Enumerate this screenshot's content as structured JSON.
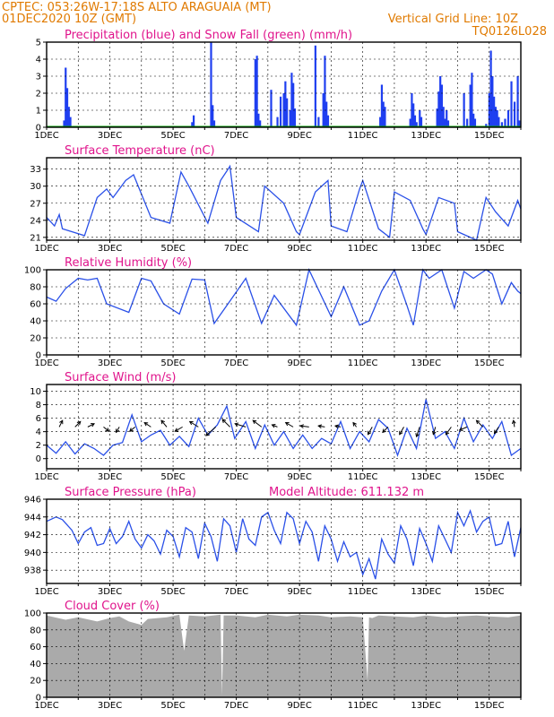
{
  "header": {
    "line1": "CPTEC:   053:26W-17:18S   ALTO ARAGUAIA (MT)",
    "line2": "01DEC2020 10Z (GMT)",
    "grid_note": "Vertical Grid Line: 10Z",
    "code": "TQ0126L028"
  },
  "colors": {
    "header": "#e07a00",
    "title": "#e0148c",
    "precip": "#1f3ff0",
    "snow": "#00a000",
    "line": "#2a50e8",
    "arrow": "#000000",
    "cloud": "#aaaaaa"
  },
  "chart_data": [
    {
      "type": "bar",
      "title": "Precipitation (blue) and Snow Fall (green) (mm/h)",
      "x_tick_labels": [
        "1DEC",
        "3DEC",
        "5DEC",
        "7DEC",
        "9DEC",
        "11DEC",
        "13DEC",
        "15DEC"
      ],
      "x_range_days": [
        1,
        16
      ],
      "ylim": [
        0,
        5
      ],
      "yticks": [
        0,
        1,
        2,
        3,
        4,
        5
      ],
      "grid": true,
      "series": [
        {
          "name": "Precipitation",
          "x": [
            1.55,
            1.6,
            1.65,
            1.7,
            1.75,
            5.6,
            5.65,
            6.2,
            6.25,
            6.3,
            7.6,
            7.65,
            7.7,
            7.75,
            8.1,
            8.3,
            8.4,
            8.5,
            8.55,
            8.6,
            8.7,
            8.75,
            8.8,
            8.85,
            9.5,
            9.6,
            9.75,
            9.8,
            9.85,
            9.9,
            11.55,
            11.6,
            11.65,
            11.7,
            12.5,
            12.55,
            12.6,
            12.65,
            12.7,
            12.8,
            12.85,
            13.35,
            13.4,
            13.45,
            13.5,
            13.55,
            13.6,
            13.65,
            13.7,
            14.2,
            14.3,
            14.4,
            14.45,
            14.5,
            14.55,
            14.9,
            15.0,
            15.05,
            15.1,
            15.15,
            15.2,
            15.25,
            15.3,
            15.4,
            15.5,
            15.6,
            15.7,
            15.8,
            15.9,
            15.95
          ],
          "values": [
            0.4,
            3.5,
            2.3,
            1.2,
            0.6,
            0.3,
            0.7,
            5.0,
            1.3,
            0.4,
            4.0,
            4.2,
            0.8,
            0.4,
            2.2,
            0.6,
            1.8,
            2.0,
            2.7,
            1.7,
            1.0,
            3.2,
            2.6,
            1.1,
            4.8,
            0.6,
            2.0,
            4.2,
            1.5,
            0.7,
            0.6,
            2.5,
            1.5,
            1.2,
            0.5,
            2.0,
            1.4,
            0.7,
            0.3,
            1.0,
            0.6,
            1.1,
            2.1,
            3.0,
            2.5,
            1.2,
            0.5,
            1.0,
            0.4,
            2.0,
            0.5,
            2.5,
            3.2,
            0.8,
            0.5,
            0.2,
            2.0,
            4.5,
            3.0,
            1.8,
            1.2,
            1.0,
            0.6,
            0.3,
            0.5,
            1.0,
            2.7,
            1.5,
            3.0,
            0.4
          ]
        },
        {
          "name": "Snow Fall",
          "x": [
            1.0,
            16.0
          ],
          "values": [
            0,
            0
          ]
        }
      ]
    },
    {
      "type": "line",
      "title": "Surface Temperature (nC)",
      "x_tick_labels": [
        "1DEC",
        "3DEC",
        "5DEC",
        "7DEC",
        "9DEC",
        "11DEC",
        "13DEC",
        "15DEC"
      ],
      "x_range_days": [
        1,
        16
      ],
      "ylim": [
        20.5,
        35
      ],
      "yticks": [
        21,
        24,
        27,
        30,
        33
      ],
      "grid": true,
      "series": [
        {
          "name": "Surface Temperature",
          "x": [
            1.0,
            1.25,
            1.4,
            1.5,
            2.2,
            2.6,
            2.9,
            3.1,
            3.5,
            3.75,
            4.3,
            4.9,
            5.25,
            5.5,
            6.1,
            6.5,
            6.8,
            7.0,
            7.7,
            7.9,
            8.5,
            8.9,
            9.0,
            9.5,
            9.9,
            10.0,
            10.5,
            10.9,
            11.0,
            11.5,
            11.85,
            12.0,
            12.5,
            12.9,
            13.0,
            13.4,
            13.9,
            14.0,
            14.6,
            14.9,
            15.2,
            15.6,
            15.9,
            16.0
          ],
          "values": [
            24.5,
            23.0,
            25.0,
            22.5,
            21.3,
            28.0,
            29.5,
            28.0,
            31.0,
            32.0,
            24.5,
            23.5,
            32.5,
            30.0,
            23.5,
            31.0,
            33.5,
            24.5,
            22.0,
            30.0,
            27.0,
            22.0,
            21.5,
            29.0,
            31.0,
            23.0,
            22.0,
            29.5,
            31.0,
            22.5,
            21.0,
            29.0,
            27.5,
            22.5,
            21.5,
            28.0,
            27.0,
            22.0,
            20.5,
            28.0,
            25.5,
            23.0,
            27.5,
            26.0
          ]
        }
      ]
    },
    {
      "type": "line",
      "title": "Relative Humidity (%)",
      "x_tick_labels": [
        "1DEC",
        "3DEC",
        "5DEC",
        "7DEC",
        "9DEC",
        "11DEC",
        "13DEC",
        "15DEC"
      ],
      "x_range_days": [
        1,
        16
      ],
      "ylim": [
        0,
        100
      ],
      "yticks": [
        0,
        20,
        40,
        60,
        80,
        100
      ],
      "grid": true,
      "series": [
        {
          "name": "Relative Humidity",
          "x": [
            1.0,
            1.3,
            1.6,
            2.0,
            2.3,
            2.6,
            2.9,
            3.6,
            4.0,
            4.3,
            4.7,
            5.2,
            5.6,
            6.0,
            6.3,
            6.7,
            7.3,
            7.8,
            8.2,
            8.9,
            9.3,
            10.0,
            10.4,
            10.9,
            11.2,
            11.6,
            12.0,
            12.4,
            12.6,
            12.9,
            13.1,
            13.5,
            13.9,
            14.2,
            14.5,
            14.9,
            15.1,
            15.4,
            15.7,
            15.9,
            16.0
          ],
          "values": [
            68,
            63,
            78,
            90,
            88,
            90,
            60,
            50,
            90,
            87,
            60,
            48,
            89,
            88,
            37,
            58,
            90,
            37,
            70,
            35,
            100,
            45,
            80,
            35,
            40,
            75,
            100,
            58,
            35,
            100,
            90,
            100,
            55,
            98,
            90,
            100,
            95,
            60,
            85,
            75,
            72
          ]
        }
      ]
    },
    {
      "type": "line",
      "title": "Surface Wind (m/s)",
      "x_tick_labels": [
        "1DEC",
        "3DEC",
        "5DEC",
        "7DEC",
        "9DEC",
        "11DEC",
        "13DEC",
        "15DEC"
      ],
      "x_range_days": [
        1,
        16
      ],
      "ylim": [
        -1.5,
        11
      ],
      "yticks": [
        0,
        2,
        4,
        6,
        8,
        10
      ],
      "grid": true,
      "series": [
        {
          "name": "Wind Speed",
          "x": [
            1.0,
            1.3,
            1.6,
            1.9,
            2.2,
            2.5,
            2.8,
            3.1,
            3.4,
            3.7,
            4.0,
            4.3,
            4.6,
            4.9,
            5.2,
            5.5,
            5.8,
            6.1,
            6.4,
            6.7,
            6.95,
            7.3,
            7.6,
            7.9,
            8.2,
            8.5,
            8.8,
            9.1,
            9.4,
            9.7,
            10.0,
            10.3,
            10.6,
            10.9,
            11.2,
            11.5,
            11.8,
            12.1,
            12.4,
            12.7,
            13.0,
            13.3,
            13.6,
            13.9,
            14.2,
            14.5,
            14.8,
            15.1,
            15.4,
            15.7,
            16.0
          ],
          "values": [
            2.0,
            0.8,
            2.5,
            0.7,
            2.2,
            1.5,
            0.5,
            2.0,
            2.4,
            6.5,
            2.5,
            3.5,
            4.2,
            2.0,
            3.3,
            1.8,
            6.0,
            3.5,
            5.0,
            7.8,
            3.0,
            5.5,
            1.5,
            5.0,
            2.0,
            4.0,
            1.5,
            3.5,
            1.5,
            3.0,
            2.2,
            5.5,
            1.5,
            4.0,
            2.5,
            5.8,
            4.5,
            0.5,
            4.5,
            1.5,
            8.8,
            3.0,
            4.0,
            1.5,
            6.0,
            2.5,
            5.0,
            3.0,
            5.5,
            0.5,
            1.5
          ]
        },
        {
          "name": "Wind Direction",
          "arrow_x": [
            1.4,
            1.9,
            2.3,
            2.8,
            3.3,
            3.8,
            4.3,
            4.8,
            5.3,
            5.8,
            6.35,
            6.8,
            7.3,
            7.8,
            8.3,
            8.8,
            9.3,
            9.8,
            10.3,
            10.8,
            11.3,
            11.8,
            12.3,
            12.8,
            13.3,
            13.8,
            14.3,
            14.8,
            15.3,
            15.8
          ],
          "arrow_u": [
            0.3,
            0.5,
            0.6,
            0.5,
            -0.3,
            -0.5,
            -0.6,
            -0.5,
            -0.7,
            -0.8,
            -0.9,
            -0.7,
            -1.0,
            -0.8,
            -0.5,
            -0.7,
            -0.8,
            -0.6,
            -0.5,
            -0.3,
            -0.4,
            -0.5,
            -0.4,
            -0.3,
            -0.2,
            -0.5,
            -0.7,
            -0.6,
            -0.4,
            -0.1
          ],
          "arrow_v": [
            0.6,
            0.5,
            0.3,
            -0.4,
            -0.5,
            -0.4,
            0.4,
            0.6,
            -0.4,
            0.5,
            -0.8,
            0.7,
            0.3,
            0.6,
            0.2,
            0.4,
            0.1,
            0.1,
            0.1,
            0.4,
            -0.7,
            -0.5,
            -0.7,
            -0.9,
            -0.7,
            -0.7,
            -0.3,
            0.6,
            -0.6,
            0.6
          ]
        }
      ]
    },
    {
      "type": "line",
      "title": "Surface Pressure (hPa)",
      "annotation": "Model Altitude: 611.132 m",
      "x_tick_labels": [
        "1DEC",
        "3DEC",
        "5DEC",
        "7DEC",
        "9DEC",
        "11DEC",
        "13DEC",
        "15DEC"
      ],
      "x_range_days": [
        1,
        16
      ],
      "ylim": [
        936.5,
        946
      ],
      "yticks": [
        938,
        940,
        942,
        944,
        946
      ],
      "grid": true,
      "series": [
        {
          "name": "Surface Pressure",
          "x": [
            1.0,
            1.3,
            1.5,
            1.8,
            2.0,
            2.2,
            2.4,
            2.6,
            2.8,
            3.0,
            3.2,
            3.4,
            3.6,
            3.8,
            4.0,
            4.2,
            4.4,
            4.6,
            4.8,
            5.0,
            5.2,
            5.4,
            5.6,
            5.8,
            6.0,
            6.2,
            6.4,
            6.6,
            6.8,
            7.0,
            7.2,
            7.4,
            7.6,
            7.8,
            8.0,
            8.2,
            8.4,
            8.6,
            8.8,
            9.0,
            9.2,
            9.4,
            9.6,
            9.8,
            10.0,
            10.2,
            10.4,
            10.6,
            10.8,
            11.0,
            11.2,
            11.4,
            11.6,
            11.8,
            12.0,
            12.2,
            12.4,
            12.6,
            12.8,
            13.0,
            13.2,
            13.4,
            13.6,
            13.8,
            14.0,
            14.2,
            14.4,
            14.6,
            14.8,
            15.0,
            15.2,
            15.4,
            15.6,
            15.8,
            16.0
          ],
          "values": [
            943.5,
            944.0,
            943.7,
            942.5,
            941.0,
            942.3,
            942.8,
            940.8,
            941.0,
            942.7,
            941.0,
            941.8,
            943.5,
            941.5,
            940.5,
            942.0,
            941.3,
            939.8,
            942.5,
            941.8,
            939.5,
            942.8,
            942.3,
            939.3,
            943.3,
            941.8,
            939.0,
            943.8,
            943.0,
            940.0,
            943.8,
            941.5,
            940.8,
            944.0,
            944.5,
            942.5,
            941.0,
            944.5,
            943.8,
            941.0,
            943.5,
            942.3,
            939.0,
            943.0,
            941.5,
            939.0,
            941.2,
            939.5,
            940.0,
            937.5,
            939.3,
            937.0,
            941.5,
            939.8,
            938.8,
            943.0,
            941.5,
            938.5,
            942.7,
            941.0,
            939.0,
            943.0,
            941.5,
            940.0,
            944.5,
            943.0,
            944.7,
            942.3,
            943.5,
            944.0,
            940.8,
            941.0,
            943.5,
            939.5,
            942.8
          ]
        }
      ]
    },
    {
      "type": "area",
      "title": "Cloud Cover (%)",
      "x_tick_labels": [
        "1DEC",
        "3DEC",
        "5DEC",
        "7DEC",
        "9DEC",
        "11DEC",
        "13DEC",
        "15DEC"
      ],
      "x_range_days": [
        1,
        16
      ],
      "ylim": [
        0,
        100
      ],
      "yticks": [
        0,
        20,
        40,
        60,
        80,
        100
      ],
      "grid": true,
      "series": [
        {
          "name": "Cloud Cover",
          "x": [
            1.0,
            1.6,
            2.0,
            2.6,
            3.0,
            3.3,
            3.6,
            4.0,
            4.2,
            4.8,
            5.2,
            5.35,
            5.5,
            6.0,
            6.5,
            6.55,
            6.6,
            7.0,
            7.6,
            8.0,
            8.6,
            9.0,
            9.6,
            10.0,
            10.6,
            11.0,
            11.15,
            11.2,
            11.3,
            11.5,
            12.0,
            12.6,
            13.0,
            13.6,
            14.0,
            14.6,
            15.0,
            15.6,
            16.0
          ],
          "values": [
            97,
            92,
            95,
            90,
            94,
            96,
            90,
            86,
            93,
            95,
            98,
            55,
            97,
            96,
            98,
            2,
            97,
            97,
            95,
            98,
            96,
            98,
            97,
            95,
            96,
            95,
            20,
            95,
            94,
            97,
            96,
            95,
            97,
            95,
            96,
            97,
            96,
            95,
            97
          ]
        }
      ]
    }
  ]
}
